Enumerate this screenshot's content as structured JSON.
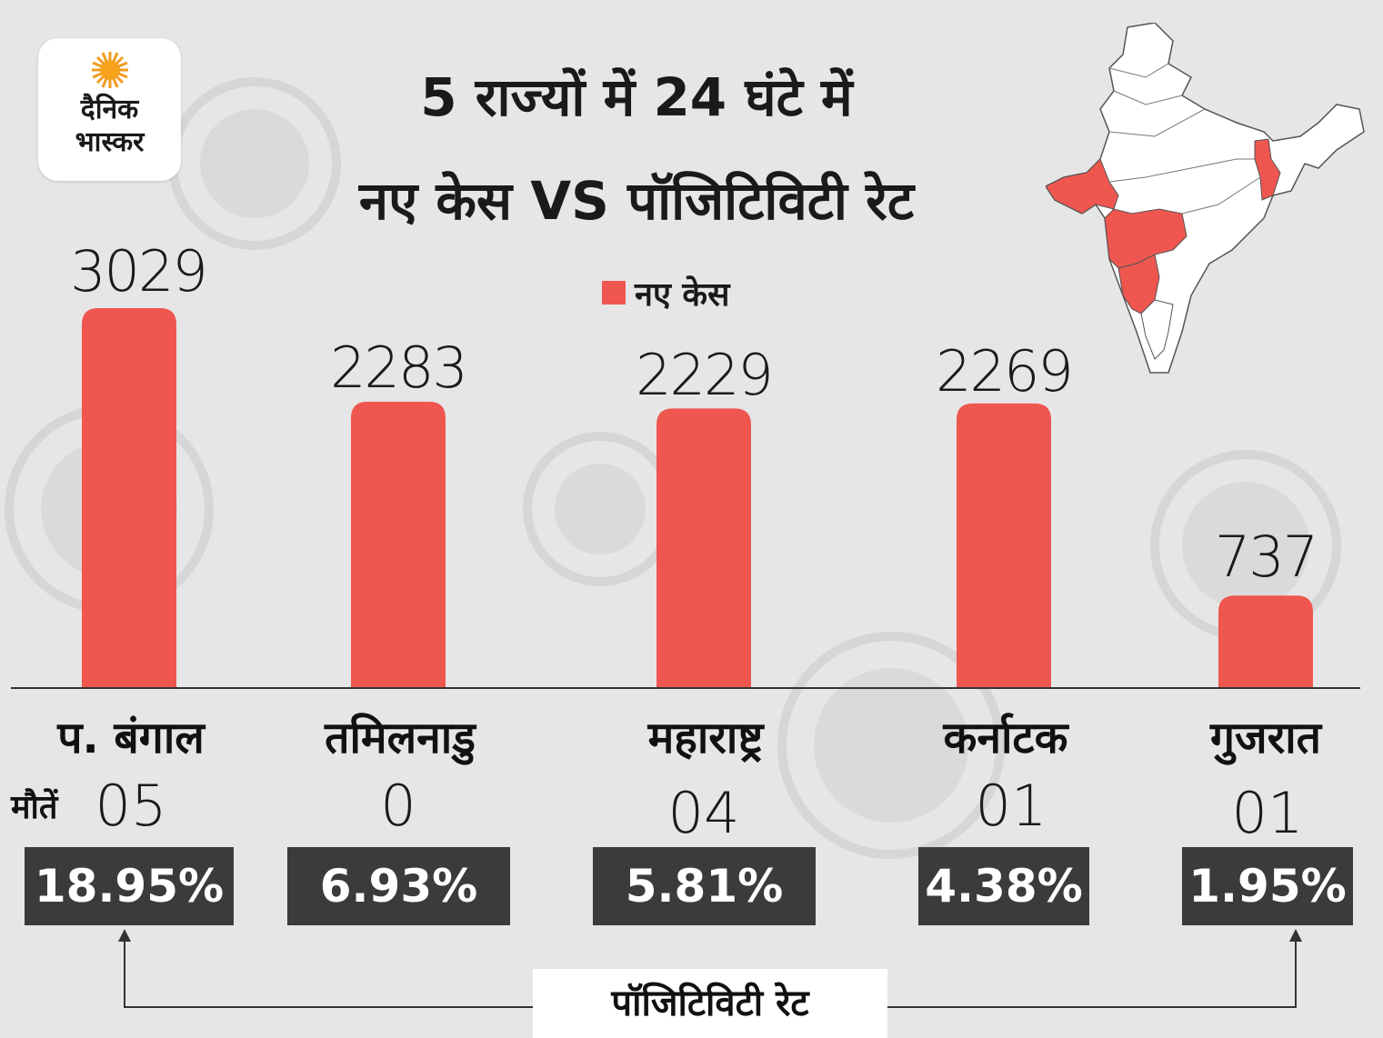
{
  "logo": {
    "line1": "दैनिक",
    "line2": "भास्कर"
  },
  "title": {
    "line1": "5 राज्यों में 24 घंटे में",
    "line2": "नए केस VS पॉजिटिविटी रेट"
  },
  "legend": {
    "label": "नए केस",
    "color": "#ef5650"
  },
  "deaths_label": "मौतें",
  "positivity_label": "पॉजिटिविटी रेट",
  "colors": {
    "bar": "#ef5650",
    "box": "#3b3b3b",
    "background": "#e6e6e6",
    "map_highlight": "#ef5650"
  },
  "chart_data": {
    "type": "bar",
    "title": "5 राज्यों में 24 घंटे में नए केस VS पॉजिटिविटी रेट",
    "categories": [
      "प. बंगाल",
      "तमिलनाडु",
      "महाराष्ट्र",
      "कर्नाटक",
      "गुजरात"
    ],
    "series": [
      {
        "name": "नए केस",
        "values": [
          3029,
          2283,
          2229,
          2269,
          737
        ]
      }
    ],
    "value_labels": [
      "3029",
      "2283",
      "2229",
      "2269",
      "737"
    ],
    "deaths": [
      "05",
      "0",
      "04",
      "01",
      "01"
    ],
    "positivity_rate": [
      "18.95%",
      "6.93%",
      "5.81%",
      "4.38%",
      "1.95%"
    ],
    "xlabel": "",
    "ylabel": "",
    "ylim": [
      0,
      3029
    ]
  }
}
